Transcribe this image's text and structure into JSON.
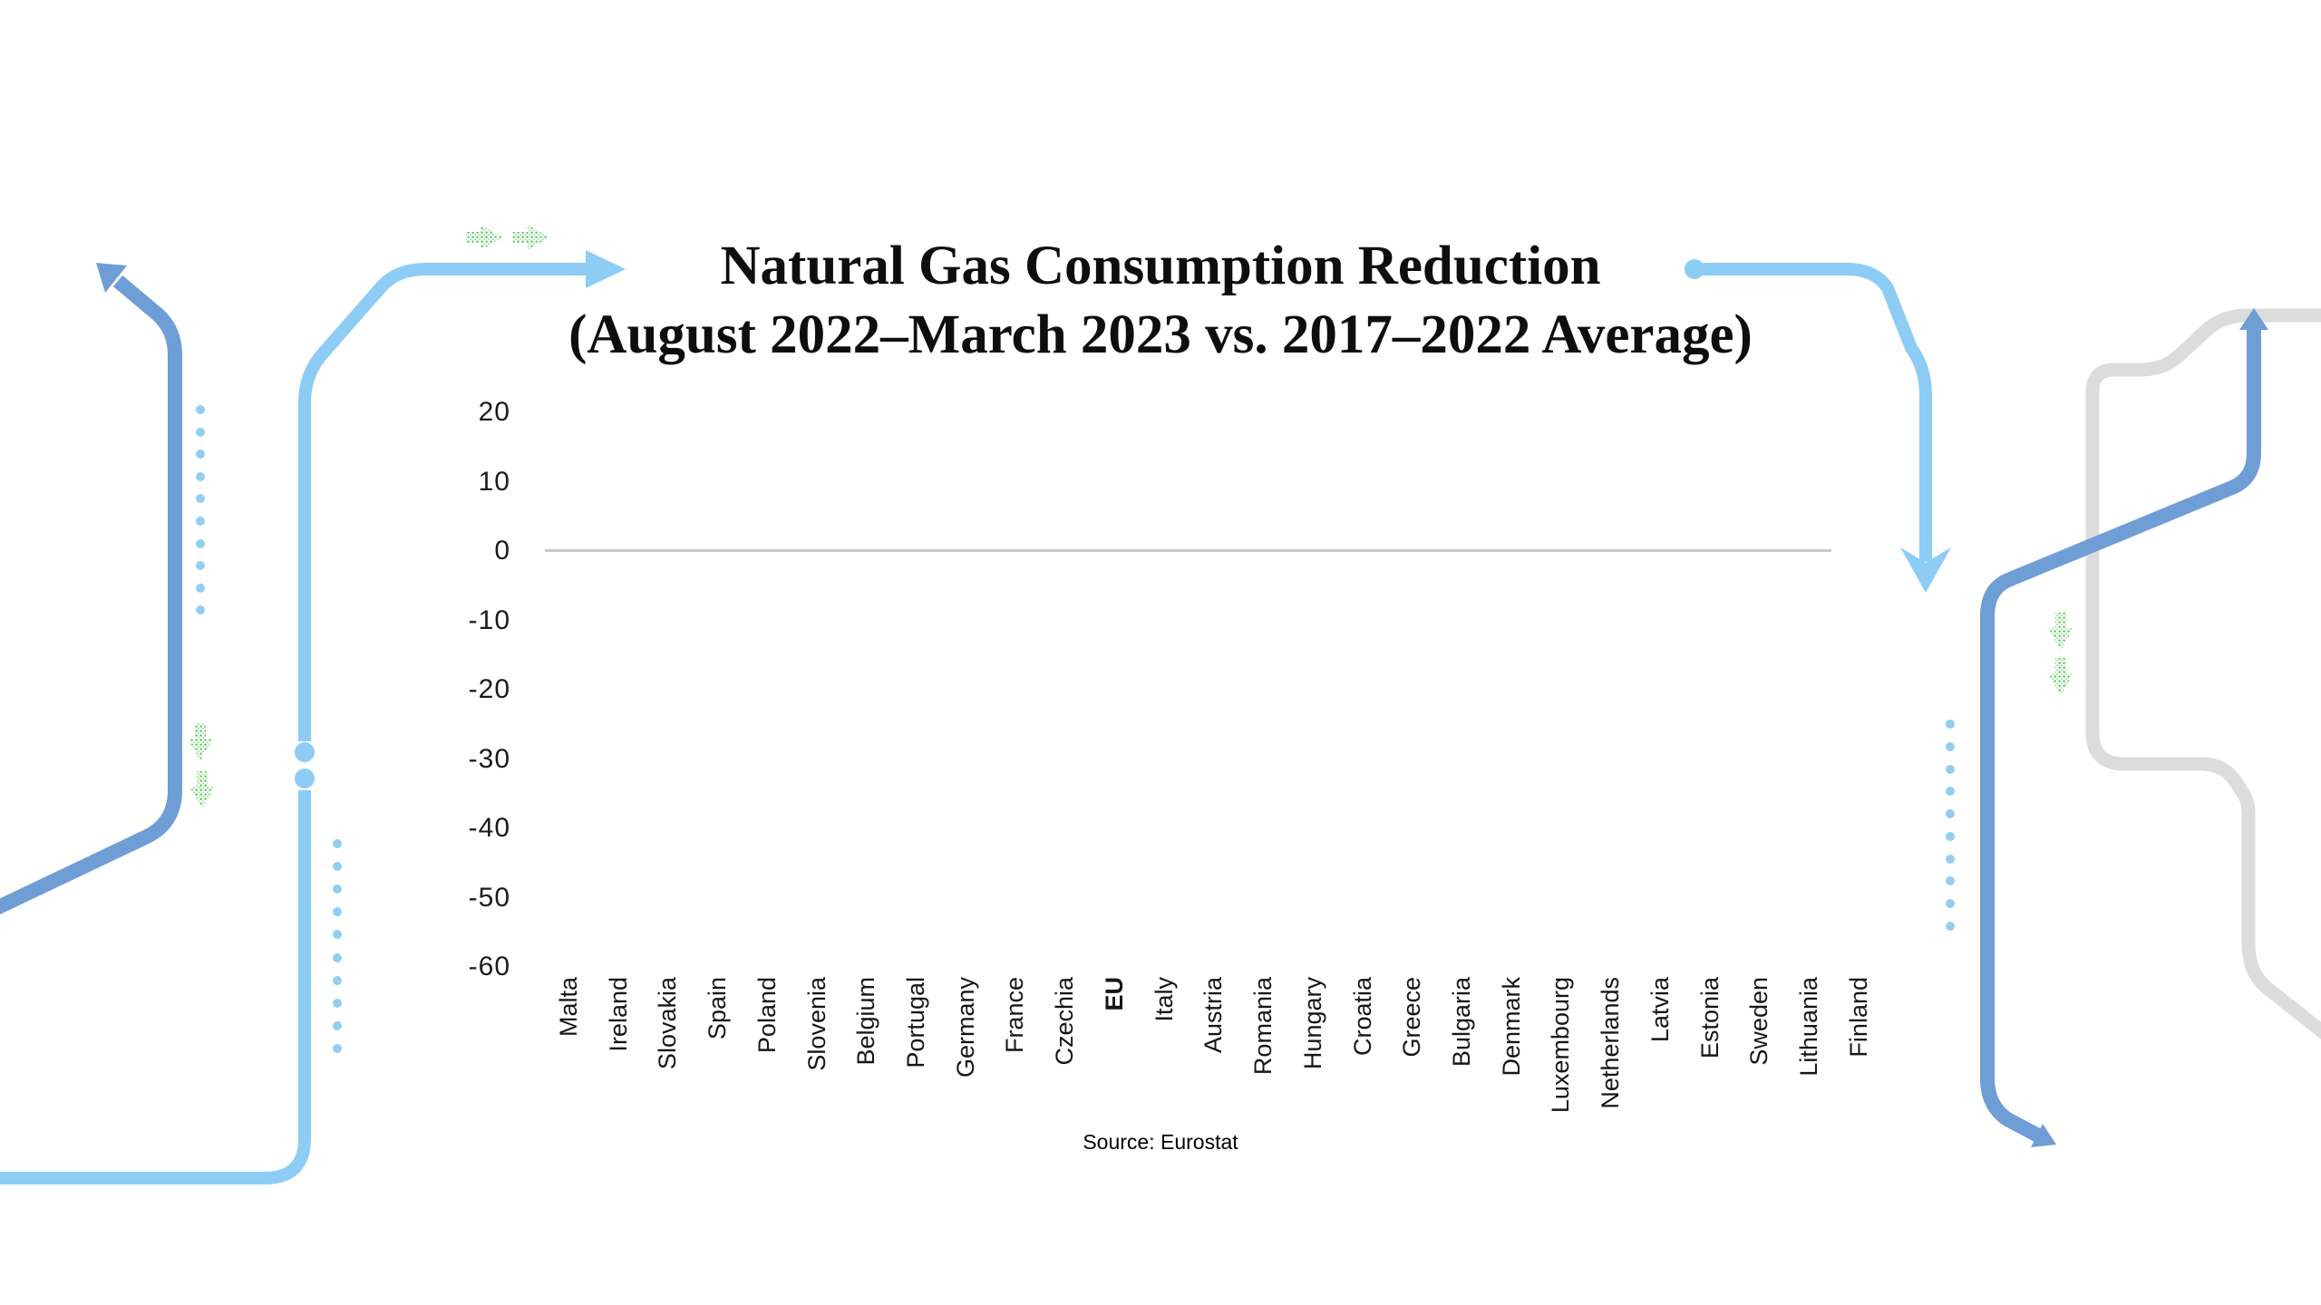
{
  "page": {
    "background": "#ffffff"
  },
  "title": {
    "line1": "Natural Gas Consumption Reduction",
    "line2": "(August 2022–March 2023 vs. 2017–2022 Average)"
  },
  "source_label": "Source: Eurostat",
  "chart_data": {
    "type": "bar",
    "title": "Natural Gas Consumption Reduction",
    "subtitle": "(August 2022–March 2023 vs. 2017–2022 Average)",
    "categories": [
      "Malta",
      "Ireland",
      "Slovakia",
      "Spain",
      "Poland",
      "Slovenia",
      "Belgium",
      "Portugal",
      "Germany",
      "France",
      "Czechia",
      "EU",
      "Italy",
      "Austria",
      "Romania",
      "Hungary",
      "Croatia",
      "Greece",
      "Bulgaria",
      "Denmark",
      "Luxembourg",
      "Netherlands",
      "Latvia",
      "Estonia",
      "Sweden",
      "Lithuania",
      "Finland"
    ],
    "emphasized_category": "EU",
    "values": [],
    "series_note": "no bars rendered in this frame; axes and labels only",
    "yticks": [
      20,
      10,
      0,
      -10,
      -20,
      -30,
      -40,
      -50,
      -60
    ],
    "ylim": [
      -60,
      20
    ],
    "xlabel": "",
    "ylabel": "",
    "grid": "zero-baseline-only",
    "legend": "none",
    "source": "Source: Eurostat"
  },
  "colors": {
    "pipe_blue": "#6f9ed6",
    "pipe_light_blue": "#8dccf5",
    "pipe_gray": "#dcdcdc",
    "dots_blue": "#93cdf2",
    "stipple_green": "#5bc85b",
    "zero_line": "#c9c9c9",
    "text": "#111111"
  }
}
